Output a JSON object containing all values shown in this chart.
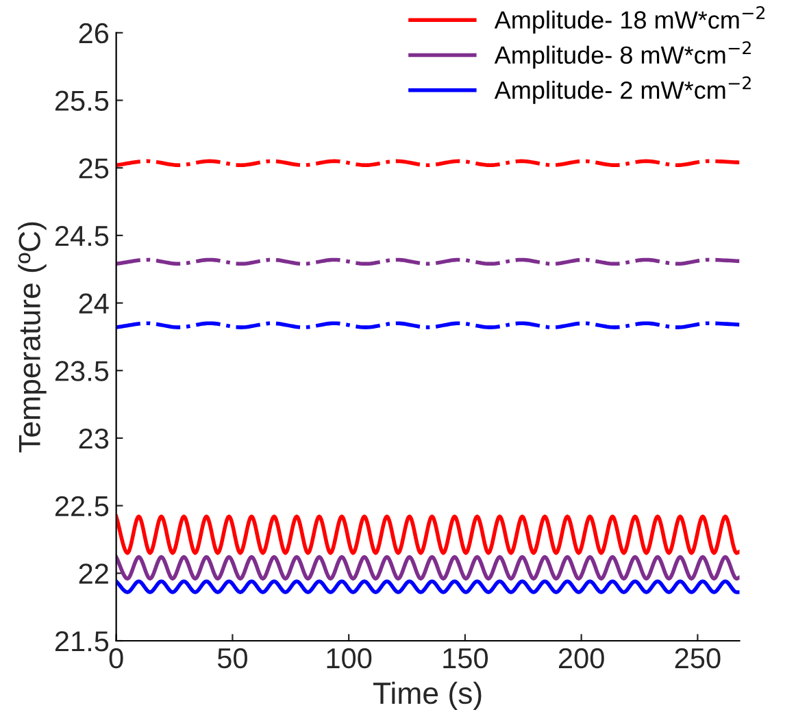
{
  "chart_data": {
    "type": "line",
    "xlabel": "Time (s)",
    "ylabel": "Temperature (ºC)",
    "xlim": [
      0,
      268
    ],
    "ylim": [
      21.5,
      26
    ],
    "xticks": [
      0,
      50,
      100,
      150,
      200,
      250
    ],
    "yticks": [
      21.5,
      22,
      22.5,
      23,
      23.5,
      24,
      24.5,
      25,
      25.5,
      26
    ],
    "grid": false,
    "legend": "top right",
    "line_style": "solid",
    "marker": "none",
    "x": [
      0,
      4.85,
      9.7,
      14.55,
      19.4,
      24.25,
      29.1,
      33.95,
      38.8,
      43.65,
      48.5,
      53.35,
      58.2,
      63.05,
      67.9,
      72.75,
      77.6,
      82.45,
      87.3,
      92.15,
      97,
      101.85,
      106.7,
      111.55,
      116.4,
      121.25,
      126.1,
      130.95,
      135.8,
      140.65,
      145.5,
      150.35,
      155.2,
      160.05,
      164.9,
      169.75,
      174.6,
      179.45,
      184.3,
      189.15,
      194,
      198.85,
      203.7,
      208.55,
      213.4,
      218.25,
      223.1,
      227.95,
      232.8,
      237.65,
      242.5,
      247.35,
      252.2,
      257.05,
      261.9,
      266.75,
      268
    ],
    "series": [
      {
        "name": "Amplitude- 18 mW*cm$^{−2}$",
        "color": "#ff0000",
        "values": [
          22.42,
          22.15,
          22.42,
          22.15,
          22.42,
          22.15,
          22.42,
          22.15,
          22.42,
          22.15,
          22.42,
          22.15,
          22.42,
          22.15,
          22.42,
          22.15,
          22.42,
          22.15,
          22.42,
          22.15,
          22.42,
          22.15,
          22.42,
          22.15,
          22.42,
          22.15,
          22.42,
          22.15,
          22.42,
          22.15,
          22.42,
          22.15,
          22.42,
          22.15,
          22.42,
          22.15,
          22.42,
          22.15,
          22.42,
          22.15,
          22.42,
          22.15,
          22.42,
          22.15,
          22.42,
          22.15,
          22.42,
          22.15,
          22.42,
          22.15,
          22.42,
          22.15,
          22.42,
          22.15,
          22.42,
          22.15,
          22.16
        ]
      },
      {
        "name": "Amplitude- 8 mW*cm$^{−2}$",
        "color": "#7e2f8e",
        "values": [
          22.12,
          21.96,
          22.12,
          21.96,
          22.12,
          21.96,
          22.12,
          21.96,
          22.12,
          21.96,
          22.12,
          21.96,
          22.12,
          21.96,
          22.12,
          21.96,
          22.12,
          21.96,
          22.12,
          21.96,
          22.12,
          21.96,
          22.12,
          21.96,
          22.12,
          21.96,
          22.12,
          21.96,
          22.12,
          21.96,
          22.12,
          21.96,
          22.12,
          21.96,
          22.12,
          21.96,
          22.12,
          21.96,
          22.12,
          21.96,
          22.12,
          21.96,
          22.12,
          21.96,
          22.12,
          21.96,
          22.12,
          21.96,
          22.12,
          21.96,
          22.12,
          21.96,
          22.12,
          21.96,
          22.12,
          21.96,
          21.97
        ]
      },
      {
        "name": "Amplitude- 2 mW*cm$^{−2}$",
        "color": "#0000ff",
        "values": [
          21.94,
          21.86,
          21.94,
          21.86,
          21.94,
          21.86,
          21.94,
          21.86,
          21.94,
          21.86,
          21.94,
          21.86,
          21.94,
          21.86,
          21.94,
          21.86,
          21.94,
          21.86,
          21.94,
          21.86,
          21.94,
          21.86,
          21.94,
          21.86,
          21.94,
          21.86,
          21.94,
          21.86,
          21.94,
          21.86,
          21.94,
          21.86,
          21.94,
          21.86,
          21.94,
          21.86,
          21.94,
          21.86,
          21.94,
          21.86,
          21.94,
          21.86,
          21.94,
          21.86,
          21.94,
          21.86,
          21.94,
          21.86,
          21.94,
          21.86,
          21.94,
          21.86,
          21.94,
          21.86,
          21.94,
          21.86,
          21.86
        ]
      },
      {
        "color": "#ff0000",
        "line_style": "dashdot",
        "x": [
          0,
          13.4,
          26.8,
          40.2,
          53.6,
          67,
          80.4,
          93.8,
          107.2,
          120.6,
          134,
          147.4,
          160.8,
          174.2,
          187.6,
          201,
          214.4,
          227.8,
          241.2,
          254.6,
          268
        ],
        "values": [
          25.02,
          25.05,
          25.02,
          25.05,
          25.02,
          25.05,
          25.02,
          25.05,
          25.02,
          25.05,
          25.02,
          25.05,
          25.02,
          25.05,
          25.02,
          25.05,
          25.02,
          25.05,
          25.02,
          25.05,
          25.04
        ]
      },
      {
        "color": "#7e2f8e",
        "line_style": "dashdot",
        "x": [
          0,
          13.4,
          26.8,
          40.2,
          53.6,
          67,
          80.4,
          93.8,
          107.2,
          120.6,
          134,
          147.4,
          160.8,
          174.2,
          187.6,
          201,
          214.4,
          227.8,
          241.2,
          254.6,
          268
        ],
        "values": [
          24.29,
          24.32,
          24.29,
          24.32,
          24.29,
          24.32,
          24.29,
          24.32,
          24.29,
          24.32,
          24.29,
          24.32,
          24.29,
          24.32,
          24.29,
          24.32,
          24.29,
          24.32,
          24.29,
          24.32,
          24.31
        ]
      },
      {
        "color": "#0000ff",
        "line_style": "dashdot",
        "x": [
          0,
          13.4,
          26.8,
          40.2,
          53.6,
          67,
          80.4,
          93.8,
          107.2,
          120.6,
          134,
          147.4,
          160.8,
          174.2,
          187.6,
          201,
          214.4,
          227.8,
          241.2,
          254.6,
          268
        ],
        "values": [
          23.82,
          23.85,
          23.82,
          23.85,
          23.82,
          23.85,
          23.82,
          23.85,
          23.82,
          23.85,
          23.82,
          23.85,
          23.82,
          23.85,
          23.82,
          23.85,
          23.82,
          23.85,
          23.82,
          23.85,
          23.84
        ]
      }
    ]
  }
}
